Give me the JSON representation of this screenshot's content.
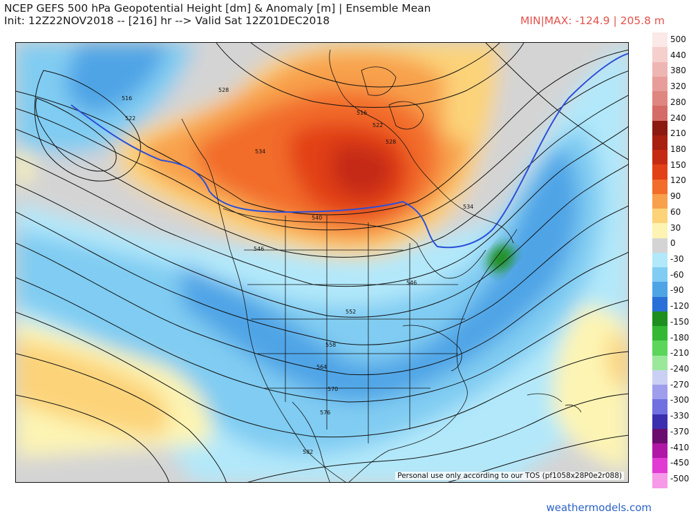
{
  "header": {
    "title": "NCEP GEFS 500 hPa Geopotential Height [dm] & Anomaly [m] | Ensemble Mean",
    "subtitle": "Init: 12Z22NOV2018 -- [216] hr --> Valid Sat 12Z01DEC2018",
    "minmax": "MIN|MAX: -124.9 | 205.8 m"
  },
  "map": {
    "tos_notice": "Personal use only according to our TOS (pf1058x28P0e2r088)",
    "contour_labels": [
      "516",
      "522",
      "528",
      "534",
      "540",
      "546",
      "552",
      "558",
      "564",
      "570",
      "576",
      "582",
      "516",
      "522",
      "528",
      "534",
      "546"
    ]
  },
  "colorbar": {
    "labels": [
      "500",
      "440",
      "380",
      "320",
      "280",
      "240",
      "210",
      "180",
      "150",
      "120",
      "90",
      "60",
      "30",
      "0",
      "-30",
      "-60",
      "-90",
      "-120",
      "-150",
      "-180",
      "-210",
      "-240",
      "-270",
      "-300",
      "-330",
      "-370",
      "-410",
      "-450",
      "-500"
    ],
    "colors": [
      "#fbe9e7",
      "#f5cfcc",
      "#eeb6b3",
      "#e79e9a",
      "#df8681",
      "#d56b66",
      "#8b1a10",
      "#a8200f",
      "#c52b12",
      "#e24117",
      "#f26c2a",
      "#f8a04c",
      "#fcd379",
      "#fdf4b3",
      "#d4d4d4",
      "#b2e8fa",
      "#80ccf2",
      "#4fa4e6",
      "#2b6fd8",
      "#1e8f1e",
      "#34b834",
      "#5bd65b",
      "#9be89b",
      "#cad0f4",
      "#9e9eec",
      "#7070e0",
      "#3a2fae",
      "#6a0d6e",
      "#b017a6",
      "#e23bd4",
      "#f69ae8"
    ]
  },
  "credit": "weathermodels.com"
}
